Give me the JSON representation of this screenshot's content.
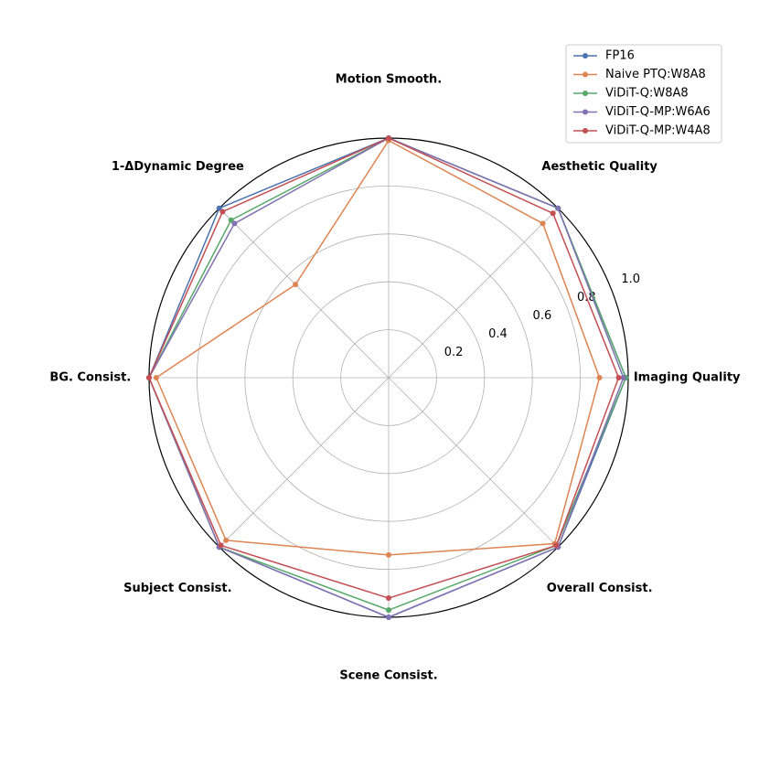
{
  "chart_data": {
    "type": "radar",
    "axes": [
      "Imaging Quality",
      "Aesthetic Quality",
      "Motion Smooth.",
      "1-ΔDynamic Degree",
      "BG. Consist.",
      "Subject Consist.",
      "Scene Consist.",
      "Overall Consist."
    ],
    "rlim": [
      0,
      1.0
    ],
    "r_ticks": [
      0.2,
      0.4,
      0.6,
      0.8,
      1.0
    ],
    "r_tick_labels": [
      "0.2",
      "0.4",
      "0.6",
      "0.8",
      "1.0"
    ],
    "grid": true,
    "legend_position": "top-right",
    "series": [
      {
        "name": "FP16",
        "color": "#4c72b0",
        "values": [
          0.99,
          1.0,
          1.0,
          1.0,
          1.0,
          1.0,
          1.0,
          1.0
        ]
      },
      {
        "name": "Naive PTQ:W8A8",
        "color": "#dd8452",
        "values": [
          0.88,
          0.91,
          0.99,
          0.55,
          0.97,
          0.96,
          0.74,
          0.98
        ]
      },
      {
        "name": "ViDiT-Q:W8A8",
        "color": "#55a868",
        "values": [
          0.99,
          1.0,
          1.0,
          0.93,
          1.0,
          1.0,
          0.97,
          0.99
        ]
      },
      {
        "name": "ViDiT-Q-MP:W6A6",
        "color": "#8172b2",
        "values": [
          0.98,
          1.0,
          1.0,
          0.91,
          1.0,
          1.0,
          1.0,
          1.0
        ]
      },
      {
        "name": "ViDiT-Q-MP:W4A8",
        "color": "#c44e52",
        "values": [
          0.96,
          0.97,
          1.0,
          0.98,
          1.0,
          0.99,
          0.92,
          0.99
        ]
      }
    ]
  }
}
